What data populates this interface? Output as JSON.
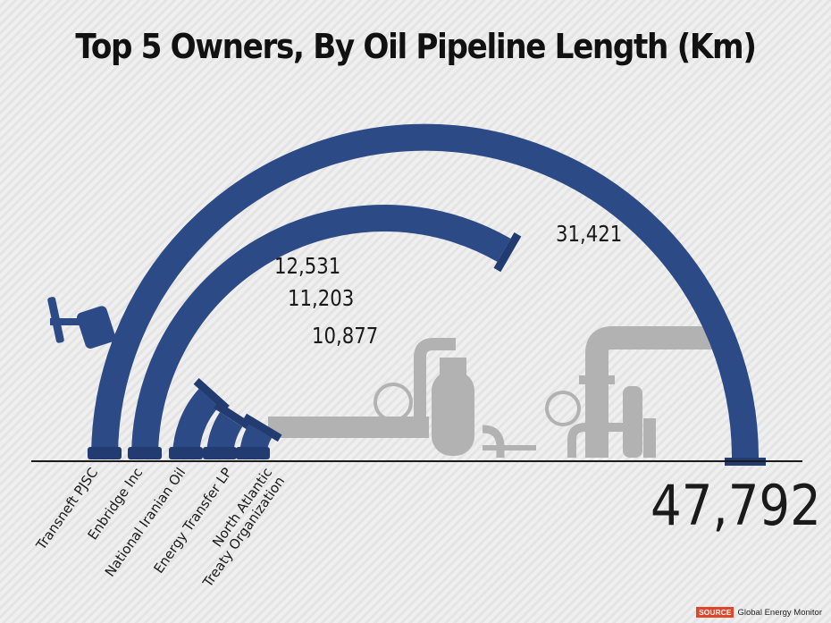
{
  "chart_data": {
    "type": "bar",
    "title": "Top 5 Owners, By Oil Pipeline Length (Km)",
    "categories": [
      "Transneft PJSC",
      "Enbridge Inc",
      "National Iranian Oil",
      "Energy Transfer LP",
      "North Atlantic Treaty Organization"
    ],
    "category_lines": [
      [
        "Transneft PJSC"
      ],
      [
        "Enbridge Inc"
      ],
      [
        "National Iranian Oil"
      ],
      [
        "Energy Transfer LP"
      ],
      [
        "North Atlantic",
        "Treaty Organization"
      ]
    ],
    "values": [
      47792,
      31421,
      12531,
      11203,
      10877
    ],
    "value_labels": [
      "47,792",
      "31,421",
      "12,531",
      "11,203",
      "10,877"
    ],
    "colors": {
      "pipe": "#2c4a86",
      "flange": "#223b70",
      "background_machinery": "#b2b2b2"
    }
  },
  "source": {
    "tag": "SOURCE",
    "name": "Global Energy Monitor"
  }
}
